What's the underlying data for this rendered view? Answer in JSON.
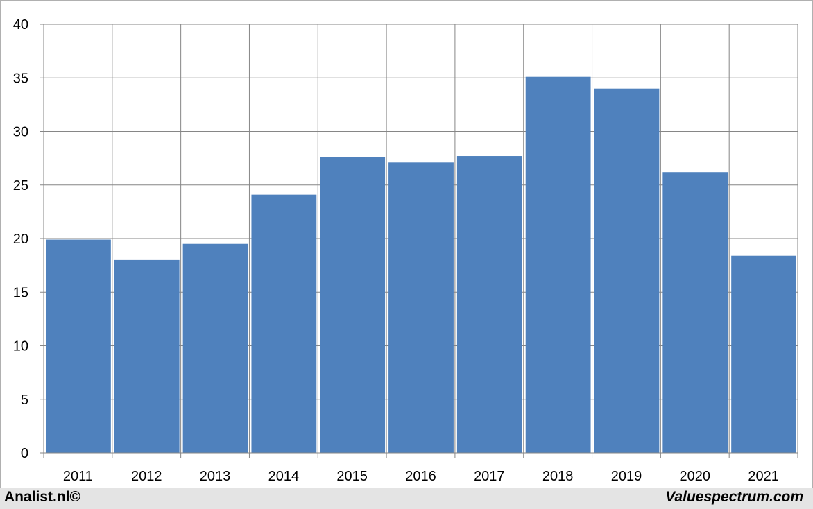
{
  "chart_data": {
    "type": "bar",
    "categories": [
      "2011",
      "2012",
      "2013",
      "2014",
      "2015",
      "2016",
      "2017",
      "2018",
      "2019",
      "2020",
      "2021"
    ],
    "values": [
      19.9,
      18.0,
      19.5,
      24.1,
      27.6,
      27.1,
      27.7,
      35.1,
      34.0,
      26.2,
      18.4
    ],
    "title": "",
    "xlabel": "",
    "ylabel": "",
    "ylim": [
      0,
      40
    ],
    "yticks": [
      0,
      5,
      10,
      15,
      20,
      25,
      30,
      35,
      40
    ],
    "grid": true,
    "bar_color": "#4f81bd",
    "grid_color": "#868686"
  },
  "footer": {
    "left_text": "Analist.nl©",
    "right_text": "Valuespectrum.com"
  }
}
